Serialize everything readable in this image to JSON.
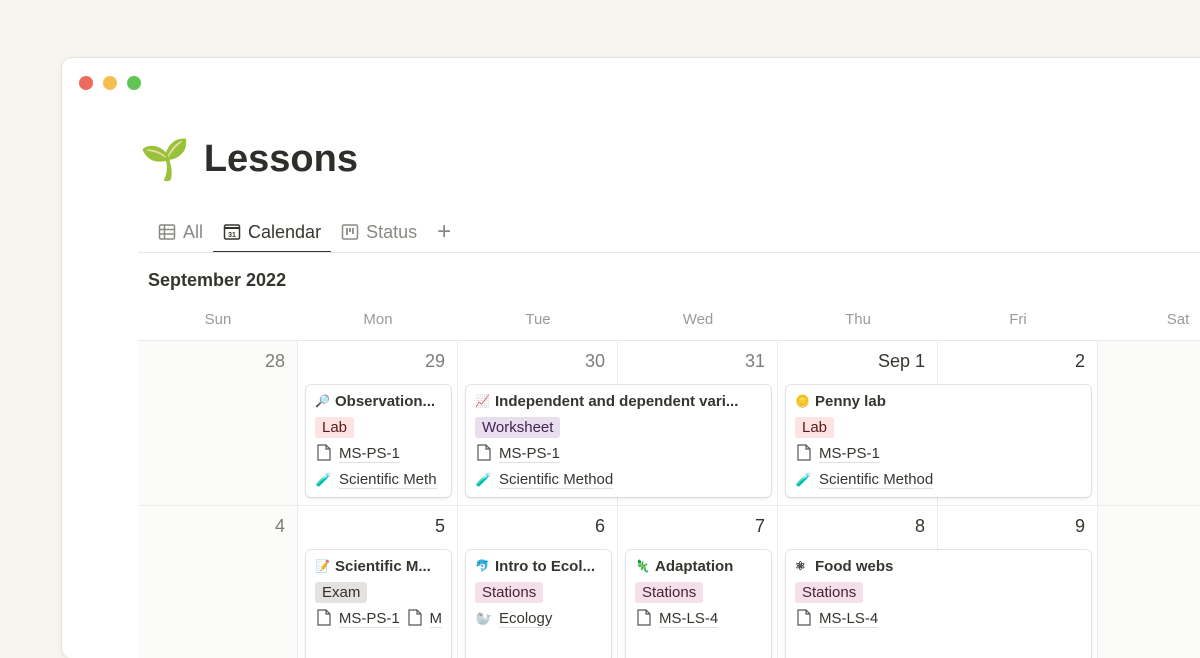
{
  "window": {
    "controls": [
      {
        "name": "close",
        "color": "#ed6a5e"
      },
      {
        "name": "minimize",
        "color": "#f5bf4f"
      },
      {
        "name": "zoom",
        "color": "#61c554"
      }
    ]
  },
  "page": {
    "icon": "🌱",
    "title": "Lessons"
  },
  "tabs": [
    {
      "label": "All",
      "icon": "table-icon",
      "active": false
    },
    {
      "label": "Calendar",
      "icon": "calendar-icon",
      "active": true
    },
    {
      "label": "Status",
      "icon": "board-icon",
      "active": false
    }
  ],
  "add_view": "+",
  "calendar": {
    "month": "September 2022",
    "weekdays": [
      "Sun",
      "Mon",
      "Tue",
      "Wed",
      "Thu",
      "Fri",
      "Sat"
    ],
    "weeks": [
      {
        "days": [
          "28",
          "29",
          "30",
          "31",
          "Sep 1",
          "2",
          ""
        ],
        "events": [
          {
            "day": 1,
            "span": 1,
            "icon": "🔎",
            "title": "Observation...",
            "tag": "Lab",
            "tag_color": "lab",
            "props": [
              {
                "icon": "doc",
                "text": "MS-PS-1"
              },
              {
                "icon": "🧪",
                "text": "Scientific Meth"
              }
            ]
          },
          {
            "day": 2,
            "span": 2,
            "icon": "📈",
            "title": "Independent and dependent vari...",
            "tag": "Worksheet",
            "tag_color": "worksheet",
            "props": [
              {
                "icon": "doc",
                "text": "MS-PS-1"
              },
              {
                "icon": "🧪",
                "text": "Scientific Method"
              }
            ]
          },
          {
            "day": 4,
            "span": 2,
            "icon": "🪙",
            "title": "Penny lab",
            "tag": "Lab",
            "tag_color": "lab",
            "props": [
              {
                "icon": "doc",
                "text": "MS-PS-1"
              },
              {
                "icon": "🧪",
                "text": "Scientific Method"
              }
            ]
          }
        ]
      },
      {
        "days": [
          "4",
          "5",
          "6",
          "7",
          "8",
          "9",
          ""
        ],
        "events": [
          {
            "day": 1,
            "span": 1,
            "icon": "📝",
            "title": "Scientific M...",
            "tag": "Exam",
            "tag_color": "exam",
            "props": [
              {
                "icon": "doc",
                "text": "MS-PS-1",
                "extra": "M"
              }
            ]
          },
          {
            "day": 2,
            "span": 1,
            "icon": "🐬",
            "title": "Intro to Ecol...",
            "tag": "Stations",
            "tag_color": "stations",
            "props": [
              {
                "icon": "🦭",
                "text": "Ecology"
              }
            ]
          },
          {
            "day": 3,
            "span": 1,
            "icon": "🦎",
            "title": "Adaptation",
            "tag": "Stations",
            "tag_color": "stations",
            "props": [
              {
                "icon": "doc",
                "text": "MS-LS-4"
              }
            ]
          },
          {
            "day": 4,
            "span": 2,
            "icon": "⚛",
            "title": "Food webs",
            "tag": "Stations",
            "tag_color": "stations",
            "props": [
              {
                "icon": "doc",
                "text": "MS-LS-4"
              }
            ]
          }
        ]
      }
    ]
  },
  "tag_colors": {
    "lab": {
      "bg": "#fbe4e2",
      "fg": "#5d1715"
    },
    "worksheet": {
      "bg": "#e8deee",
      "fg": "#412454"
    },
    "exam": {
      "bg": "#e3e2e0",
      "fg": "#32302c"
    },
    "stations": {
      "bg": "#f4dfeb",
      "fg": "#4c2337"
    }
  }
}
